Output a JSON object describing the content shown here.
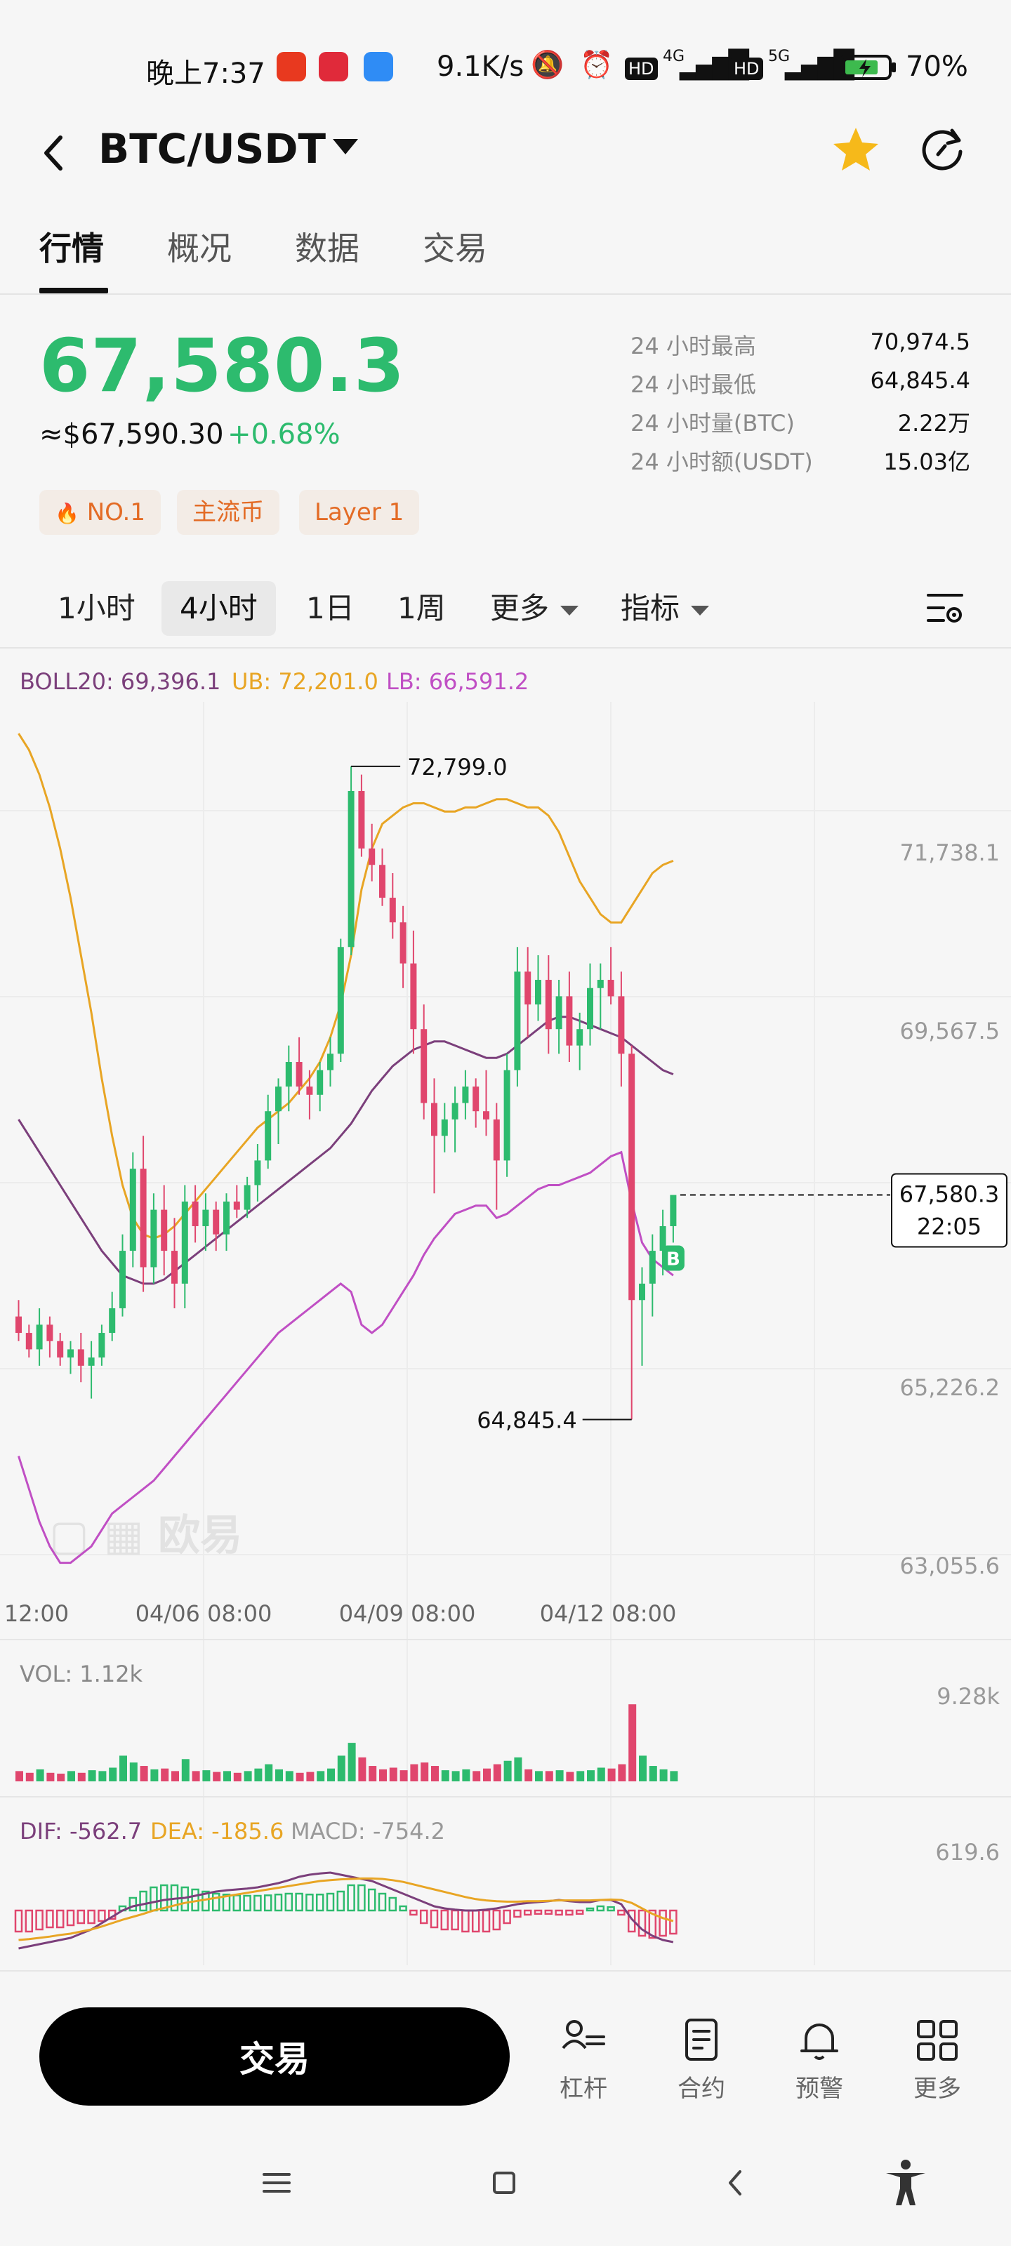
{
  "status_bar": {
    "time": "晚上7:37",
    "net_speed": "9.1K/s",
    "battery": "70%",
    "signal_4g": "4G",
    "signal_5g": "5G",
    "hd": "HD"
  },
  "header": {
    "pair": "BTC/USDT",
    "icons": [
      "back-icon",
      "chevron-down-icon",
      "star-icon",
      "refresh-icon"
    ],
    "star_color": "#f6b91a"
  },
  "tabs": [
    {
      "label": "行情",
      "active": true
    },
    {
      "label": "概况",
      "active": false
    },
    {
      "label": "数据",
      "active": false
    },
    {
      "label": "交易",
      "active": false
    }
  ],
  "price": {
    "last": "67,580.3",
    "usd": "≈$67,590.30",
    "change": "+0.68%",
    "color": "#2dbb6e"
  },
  "stats": [
    {
      "label": "24 小时最高",
      "value": "70,974.5"
    },
    {
      "label": "24 小时最低",
      "value": "64,845.4"
    },
    {
      "label": "24 小时量(BTC)",
      "value": "2.22万"
    },
    {
      "label": "24 小时额(USDT)",
      "value": "15.03亿"
    }
  ],
  "tags": [
    "NO.1",
    "主流币",
    "Layer 1"
  ],
  "intervals": {
    "items": [
      {
        "label": "1小时",
        "active": false
      },
      {
        "label": "4小时",
        "active": true
      },
      {
        "label": "1日",
        "active": false
      },
      {
        "label": "1周",
        "active": false
      }
    ],
    "more": "更多",
    "indicator": "指标"
  },
  "boll": {
    "mid": "BOLL20: 69,396.1",
    "ub": "UB: 72,201.0",
    "lb": "LB: 66,591.2",
    "mid_color": "#7b3f7b",
    "ub_color": "#e8a524",
    "lb_color": "#c04fc4"
  },
  "chart_data": {
    "type": "candlestick",
    "y_ticks": [
      "71,738.1",
      "69,567.5",
      "65,226.2",
      "63,055.6"
    ],
    "ylim": [
      62900,
      73500
    ],
    "x_ticks": [
      "12:00",
      "04/06 08:00",
      "04/09 08:00",
      "04/12 08:00"
    ],
    "high_label": "72,799.0",
    "low_label": "64,845.4",
    "current_price": "67,580.3",
    "countdown": "22:05",
    "buy_marker": "B",
    "watermark": "欧易",
    "up_color": "#2dbb6e",
    "down_color": "#e0466d",
    "candles": [
      [
        66100,
        66300,
        65800,
        65900
      ],
      [
        65900,
        66000,
        65600,
        65700
      ],
      [
        65700,
        66200,
        65500,
        66000
      ],
      [
        66000,
        66100,
        65600,
        65800
      ],
      [
        65800,
        65900,
        65500,
        65600
      ],
      [
        65600,
        65800,
        65400,
        65700
      ],
      [
        65700,
        65900,
        65300,
        65500
      ],
      [
        65500,
        65800,
        65100,
        65600
      ],
      [
        65600,
        66000,
        65500,
        65900
      ],
      [
        65900,
        66400,
        65800,
        66200
      ],
      [
        66200,
        67100,
        66100,
        66900
      ],
      [
        66900,
        68100,
        66700,
        67900
      ],
      [
        67900,
        68300,
        66400,
        66700
      ],
      [
        66700,
        67600,
        66500,
        67400
      ],
      [
        67400,
        67700,
        66600,
        66900
      ],
      [
        66900,
        67300,
        66200,
        66500
      ],
      [
        66500,
        67700,
        66200,
        67500
      ],
      [
        67500,
        67700,
        67000,
        67200
      ],
      [
        67200,
        67600,
        66900,
        67400
      ],
      [
        67400,
        67500,
        66900,
        67100
      ],
      [
        67100,
        67600,
        66900,
        67500
      ],
      [
        67500,
        67700,
        67300,
        67400
      ],
      [
        67400,
        67800,
        67300,
        67700
      ],
      [
        67700,
        68200,
        67500,
        68000
      ],
      [
        68000,
        68800,
        67900,
        68600
      ],
      [
        68600,
        69000,
        68200,
        68900
      ],
      [
        68900,
        69400,
        68600,
        69200
      ],
      [
        69200,
        69500,
        68800,
        68900
      ],
      [
        68900,
        69100,
        68500,
        68800
      ],
      [
        68800,
        69200,
        68600,
        69100
      ],
      [
        69100,
        69500,
        68900,
        69300
      ],
      [
        69300,
        70700,
        69200,
        70600
      ],
      [
        70600,
        72800,
        70500,
        72500
      ],
      [
        72500,
        72700,
        71700,
        71800
      ],
      [
        71800,
        72100,
        71400,
        71600
      ],
      [
        71600,
        71800,
        71100,
        71200
      ],
      [
        71200,
        71500,
        70700,
        70900
      ],
      [
        70900,
        71100,
        70100,
        70400
      ],
      [
        70400,
        70800,
        69300,
        69600
      ],
      [
        69600,
        69900,
        68500,
        68700
      ],
      [
        68700,
        69000,
        67600,
        68300
      ],
      [
        68300,
        68700,
        68100,
        68500
      ],
      [
        68500,
        68900,
        68100,
        68700
      ],
      [
        68700,
        69100,
        68500,
        68900
      ],
      [
        68900,
        69000,
        68400,
        68600
      ],
      [
        68600,
        69100,
        68300,
        68500
      ],
      [
        68500,
        68700,
        67400,
        68000
      ],
      [
        68000,
        69300,
        67800,
        69100
      ],
      [
        69100,
        70600,
        68900,
        70300
      ],
      [
        70300,
        70600,
        69500,
        69900
      ],
      [
        69900,
        70500,
        69700,
        70200
      ],
      [
        70200,
        70500,
        69300,
        69600
      ],
      [
        69600,
        70200,
        69300,
        70000
      ],
      [
        70000,
        70300,
        69200,
        69400
      ],
      [
        69400,
        69800,
        69100,
        69600
      ],
      [
        69600,
        70400,
        69400,
        70100
      ],
      [
        70100,
        70400,
        69600,
        70200
      ],
      [
        70200,
        70600,
        69900,
        70000
      ],
      [
        70000,
        70300,
        68900,
        69300
      ],
      [
        69300,
        69400,
        64845,
        66300
      ],
      [
        66300,
        66700,
        65500,
        66500
      ],
      [
        66500,
        67100,
        66100,
        66900
      ],
      [
        66900,
        67400,
        66600,
        67200
      ],
      [
        67200,
        67500,
        67000,
        67580
      ]
    ],
    "ub_line": [
      73200,
      73000,
      72700,
      72300,
      71800,
      71200,
      70500,
      69800,
      69000,
      68300,
      67700,
      67300,
      67100,
      67050,
      67100,
      67200,
      67350,
      67500,
      67650,
      67800,
      67950,
      68100,
      68250,
      68400,
      68500,
      68600,
      68700,
      68850,
      69000,
      69200,
      69500,
      69900,
      70500,
      71300,
      71800,
      72100,
      72200,
      72300,
      72350,
      72350,
      72300,
      72250,
      72250,
      72300,
      72300,
      72350,
      72400,
      72400,
      72350,
      72300,
      72300,
      72200,
      72000,
      71700,
      71400,
      71200,
      71000,
      70900,
      70900,
      71100,
      71300,
      71500,
      71600,
      71650
    ],
    "mid_line": [
      68500,
      68300,
      68100,
      67900,
      67700,
      67500,
      67300,
      67100,
      66900,
      66750,
      66600,
      66550,
      66500,
      66500,
      66550,
      66650,
      66750,
      66850,
      66950,
      67050,
      67150,
      67250,
      67350,
      67450,
      67550,
      67650,
      67750,
      67850,
      67950,
      68050,
      68150,
      68300,
      68450,
      68650,
      68850,
      69000,
      69150,
      69250,
      69350,
      69400,
      69450,
      69450,
      69400,
      69350,
      69300,
      69250,
      69250,
      69300,
      69400,
      69500,
      69600,
      69700,
      69750,
      69750,
      69700,
      69650,
      69600,
      69550,
      69500,
      69400,
      69300,
      69200,
      69100,
      69050
    ],
    "lb_line": [
      64400,
      64000,
      63600,
      63300,
      63100,
      63100,
      63200,
      63300,
      63500,
      63700,
      63800,
      63900,
      64000,
      64100,
      64250,
      64400,
      64550,
      64700,
      64850,
      65000,
      65150,
      65300,
      65450,
      65600,
      65750,
      65900,
      66000,
      66100,
      66200,
      66300,
      66400,
      66500,
      66400,
      66000,
      65900,
      66000,
      66200,
      66400,
      66600,
      66850,
      67050,
      67200,
      67350,
      67400,
      67450,
      67450,
      67300,
      67350,
      67450,
      67550,
      67650,
      67700,
      67700,
      67750,
      67800,
      67850,
      67950,
      68050,
      68100,
      67500,
      67000,
      66800,
      66700,
      66600
    ],
    "vol_label": "VOL: 1.12k",
    "vol_tick": "9.28k",
    "volumes": [
      0.12,
      0.1,
      0.14,
      0.1,
      0.09,
      0.12,
      0.1,
      0.13,
      0.12,
      0.16,
      0.3,
      0.22,
      0.18,
      0.14,
      0.15,
      0.12,
      0.26,
      0.12,
      0.13,
      0.11,
      0.12,
      0.1,
      0.12,
      0.15,
      0.2,
      0.14,
      0.12,
      0.1,
      0.11,
      0.12,
      0.15,
      0.3,
      0.45,
      0.28,
      0.18,
      0.14,
      0.16,
      0.13,
      0.2,
      0.22,
      0.18,
      0.13,
      0.12,
      0.14,
      0.12,
      0.15,
      0.2,
      0.24,
      0.28,
      0.14,
      0.12,
      0.12,
      0.13,
      0.11,
      0.12,
      0.13,
      0.16,
      0.15,
      0.2,
      0.9,
      0.3,
      0.18,
      0.14,
      0.12
    ],
    "macd_label_dif": "DIF: -562.7",
    "macd_label_dea": "DEA: -185.6",
    "macd_label_macd": "MACD: -754.2",
    "macd_tick": "619.6",
    "macd_hist": [
      -0.5,
      -0.5,
      -0.45,
      -0.4,
      -0.4,
      -0.35,
      -0.3,
      -0.3,
      -0.25,
      -0.2,
      0.1,
      0.3,
      0.45,
      0.55,
      0.6,
      0.6,
      0.55,
      0.5,
      0.45,
      0.4,
      0.38,
      0.36,
      0.35,
      0.35,
      0.36,
      0.38,
      0.4,
      0.4,
      0.38,
      0.38,
      0.4,
      0.45,
      0.6,
      0.6,
      0.5,
      0.4,
      0.3,
      0.1,
      -0.1,
      -0.3,
      -0.4,
      -0.45,
      -0.45,
      -0.5,
      -0.5,
      -0.5,
      -0.45,
      -0.3,
      -0.15,
      -0.1,
      -0.08,
      -0.08,
      -0.1,
      -0.1,
      -0.08,
      0.05,
      0.1,
      0.08,
      -0.1,
      -0.5,
      -0.6,
      -0.65,
      -0.6,
      -0.55
    ],
    "dif_line": [
      -0.9,
      -0.85,
      -0.8,
      -0.75,
      -0.7,
      -0.65,
      -0.55,
      -0.45,
      -0.3,
      -0.15,
      0.0,
      0.1,
      0.15,
      0.2,
      0.25,
      0.28,
      0.3,
      0.35,
      0.4,
      0.45,
      0.48,
      0.5,
      0.52,
      0.55,
      0.6,
      0.65,
      0.72,
      0.8,
      0.85,
      0.88,
      0.9,
      0.85,
      0.8,
      0.75,
      0.7,
      0.6,
      0.5,
      0.4,
      0.3,
      0.2,
      0.1,
      0.05,
      0.02,
      0.0,
      0.0,
      0.02,
      0.05,
      0.1,
      0.15,
      0.18,
      0.2,
      0.22,
      0.25,
      0.22,
      0.2,
      0.2,
      0.25,
      0.25,
      0.15,
      -0.2,
      -0.45,
      -0.6,
      -0.7,
      -0.75
    ],
    "dea_line": [
      -0.7,
      -0.68,
      -0.65,
      -0.62,
      -0.58,
      -0.55,
      -0.5,
      -0.45,
      -0.38,
      -0.3,
      -0.22,
      -0.15,
      -0.08,
      0.0,
      0.06,
      0.12,
      0.18,
      0.22,
      0.26,
      0.3,
      0.34,
      0.38,
      0.42,
      0.46,
      0.5,
      0.54,
      0.58,
      0.62,
      0.66,
      0.7,
      0.72,
      0.74,
      0.75,
      0.76,
      0.76,
      0.75,
      0.72,
      0.68,
      0.62,
      0.56,
      0.5,
      0.44,
      0.38,
      0.32,
      0.27,
      0.24,
      0.22,
      0.21,
      0.21,
      0.22,
      0.22,
      0.23,
      0.24,
      0.24,
      0.24,
      0.24,
      0.25,
      0.26,
      0.25,
      0.18,
      0.05,
      -0.08,
      -0.18,
      -0.25
    ]
  },
  "bottom_bar": {
    "trade_label": "交易",
    "items": [
      {
        "label": "杠杆",
        "icon": "leverage-icon"
      },
      {
        "label": "合约",
        "icon": "contract-icon"
      },
      {
        "label": "预警",
        "icon": "bell-icon"
      },
      {
        "label": "更多",
        "icon": "grid-icon"
      }
    ]
  },
  "system_nav": [
    "menu-icon",
    "home-icon",
    "back-icon",
    "accessibility-icon"
  ]
}
